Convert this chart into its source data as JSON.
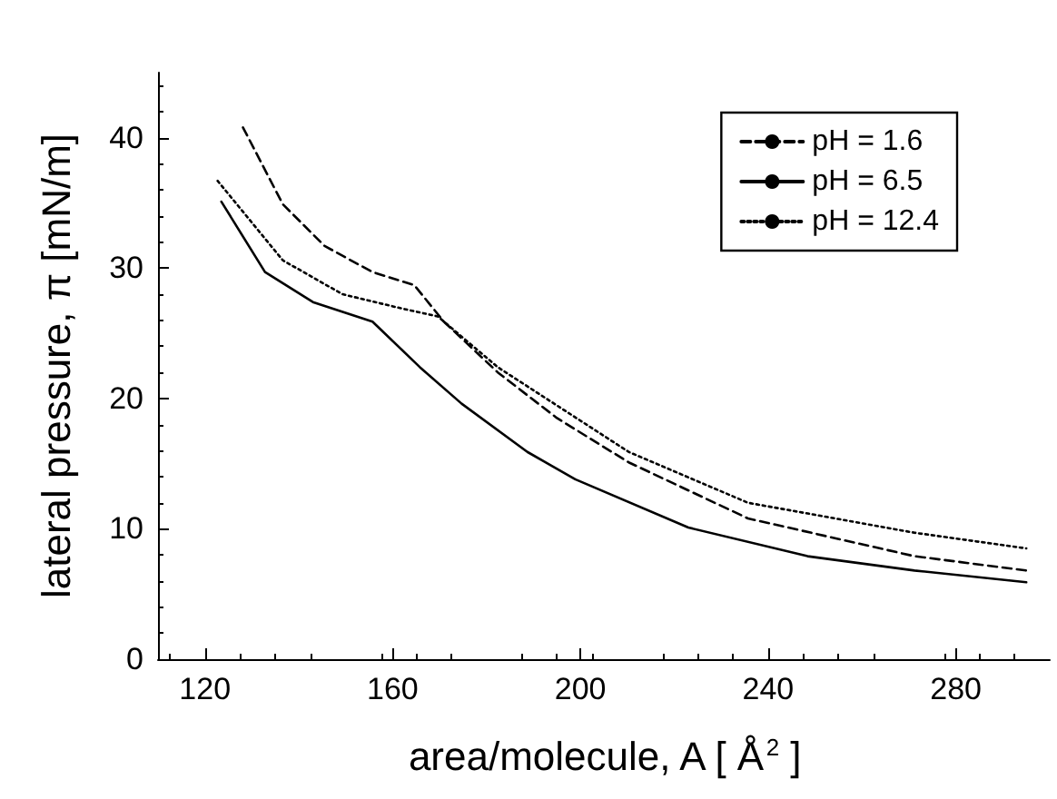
{
  "chart_data": {
    "type": "line",
    "xlabel": "area/molecule, A [ Å$^{2}$ ]",
    "ylabel": "lateral pressure, π [mN/m]",
    "xlim": [
      110,
      300
    ],
    "xticks": [
      120,
      160,
      200,
      240,
      280
    ],
    "ylim": [
      0,
      45
    ],
    "yticks": [
      0,
      10,
      20,
      30,
      40
    ],
    "grid": false,
    "legend": "top right",
    "marker": "none",
    "series": [
      {
        "name": "pH = 1.6",
        "color": "#000000",
        "line_style": "dashed",
        "x": [
          128.1,
          136.6,
          145.5,
          155.7,
          164.6,
          170.9,
          182.4,
          195,
          210.3,
          235.7,
          271.2,
          295
        ],
        "values": [
          40.8,
          34.9,
          31.7,
          29.7,
          28.7,
          25.9,
          22.0,
          18.5,
          15.1,
          10.8,
          7.9,
          6.8
        ]
      },
      {
        "name": "pH = 6.5",
        "color": "#000000",
        "line_style": "solid",
        "x": [
          123.5,
          132.8,
          143,
          155.7,
          165.8,
          174.7,
          188.7,
          198.9,
          223,
          248.4,
          271.2,
          295
        ],
        "values": [
          35.1,
          29.7,
          27.4,
          25.9,
          22.4,
          19.6,
          15.9,
          13.8,
          10.1,
          7.9,
          6.8,
          5.9
        ]
      },
      {
        "name": "pH = 12.4",
        "color": "#000000",
        "line_style": "dotted",
        "x": [
          122.7,
          136.6,
          149.3,
          162,
          169.6,
          182.4,
          210.3,
          235.7,
          271.2,
          295
        ],
        "values": [
          36.7,
          30.6,
          28.0,
          26.9,
          26.3,
          22.4,
          15.9,
          12.0,
          9.7,
          8.5
        ]
      }
    ]
  }
}
